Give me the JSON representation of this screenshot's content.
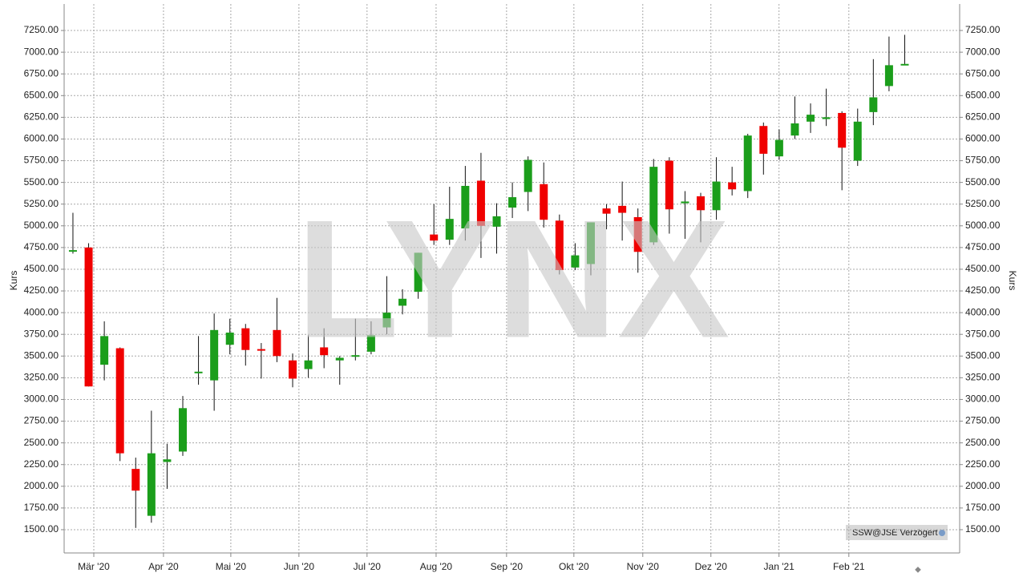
{
  "chart_data": {
    "type": "candlestick",
    "y_label": "Kurs",
    "watermark": "LYNX",
    "source_label": "SSW@JSE Verzögert",
    "up_color": "#1b9e1b",
    "down_color": "#f00000",
    "grid": true,
    "ylim": [
      1232,
      7555
    ],
    "yticks": [
      {
        "value": 1500,
        "label": "1500.00"
      },
      {
        "value": 1750,
        "label": "1750.00"
      },
      {
        "value": 2000,
        "label": "2000.00"
      },
      {
        "value": 2250,
        "label": "2250.00"
      },
      {
        "value": 2500,
        "label": "2500.00"
      },
      {
        "value": 2750,
        "label": "2750.00"
      },
      {
        "value": 3000,
        "label": "3000.00"
      },
      {
        "value": 3250,
        "label": "3250.00"
      },
      {
        "value": 3500,
        "label": "3500.00"
      },
      {
        "value": 3750,
        "label": "3750.00"
      },
      {
        "value": 4000,
        "label": "4000.00"
      },
      {
        "value": 4250,
        "label": "4250.00"
      },
      {
        "value": 4500,
        "label": "4500.00"
      },
      {
        "value": 4750,
        "label": "4750.00"
      },
      {
        "value": 5000,
        "label": "5000.00"
      },
      {
        "value": 5250,
        "label": "5250.00"
      },
      {
        "value": 5500,
        "label": "5500.00"
      },
      {
        "value": 5750,
        "label": "5750.00"
      },
      {
        "value": 6000,
        "label": "6000.00"
      },
      {
        "value": 6250,
        "label": "6250.00"
      },
      {
        "value": 6500,
        "label": "6500.00"
      },
      {
        "value": 6750,
        "label": "6750.00"
      },
      {
        "value": 7000,
        "label": "7000.00"
      },
      {
        "value": 7250,
        "label": "7250.00"
      }
    ],
    "xlim": [
      -0.56,
      56.5
    ],
    "xticks": [
      {
        "value": 1.33,
        "label": "Mär '20"
      },
      {
        "value": 5.77,
        "label": "Apr '20"
      },
      {
        "value": 10.06,
        "label": "Mai '20"
      },
      {
        "value": 14.4,
        "label": "Jun '20"
      },
      {
        "value": 18.74,
        "label": "Jul '20"
      },
      {
        "value": 23.14,
        "label": "Aug '20"
      },
      {
        "value": 27.63,
        "label": "Sep '20"
      },
      {
        "value": 31.92,
        "label": "Okt '20"
      },
      {
        "value": 36.31,
        "label": "Nov '20"
      },
      {
        "value": 40.65,
        "label": "Dez '20"
      },
      {
        "value": 44.99,
        "label": "Jan '21"
      },
      {
        "value": 49.44,
        "label": "Feb '21"
      }
    ],
    "open": [
      4710,
      4750,
      3400,
      3590,
      2200,
      1660,
      2280,
      2400,
      3310,
      3220,
      3630,
      3820,
      3580,
      3800,
      3450,
      3350,
      3600,
      3450,
      3500,
      3550,
      3830,
      4080,
      4240,
      4900,
      4840,
      4970,
      5520,
      4990,
      5210,
      5390,
      5480,
      5060,
      4520,
      4560,
      5200,
      5230,
      5100,
      4810,
      5750,
      5260,
      5340,
      5180,
      5500,
      5400,
      6150,
      5800,
      6040,
      6200,
      6230,
      6300,
      5750,
      6310,
      6610,
      6860
    ],
    "high": [
      5150,
      4800,
      3900,
      3600,
      2330,
      2870,
      2490,
      3040,
      3730,
      3990,
      3930,
      3870,
      3650,
      4170,
      3530,
      3740,
      3820,
      3500,
      3930,
      3900,
      4420,
      4270,
      4690,
      5250,
      5450,
      5690,
      5840,
      5260,
      5500,
      5800,
      5730,
      5130,
      4800,
      5040,
      5250,
      5510,
      5200,
      5770,
      5790,
      5400,
      5380,
      5790,
      5680,
      6060,
      6190,
      6110,
      6490,
      6410,
      6580,
      6320,
      6350,
      6920,
      7180,
      7200
    ],
    "low": [
      4680,
      3150,
      3220,
      2290,
      1520,
      1580,
      1970,
      2350,
      3170,
      2870,
      3520,
      3390,
      3240,
      3430,
      3140,
      3250,
      3360,
      3170,
      3450,
      3520,
      3750,
      3980,
      4160,
      4780,
      4780,
      4830,
      4630,
      4680,
      5090,
      5170,
      4980,
      4440,
      4490,
      4430,
      4960,
      4830,
      4460,
      4780,
      4910,
      4850,
      4810,
      5070,
      5350,
      5320,
      5590,
      5760,
      6000,
      6070,
      6150,
      5410,
      5690,
      6160,
      6550,
      6850
    ],
    "close": [
      4720,
      3150,
      3730,
      2380,
      1950,
      2380,
      2310,
      2900,
      3320,
      3800,
      3770,
      3570,
      3570,
      3500,
      3240,
      3450,
      3510,
      3480,
      3510,
      3740,
      4000,
      4160,
      4690,
      4830,
      5080,
      5460,
      5000,
      5110,
      5330,
      5760,
      5070,
      4490,
      4660,
      5040,
      5140,
      5150,
      4700,
      5680,
      5190,
      5280,
      5180,
      5510,
      5420,
      6040,
      5830,
      5990,
      6180,
      6280,
      6250,
      5900,
      6200,
      6480,
      6850,
      6865
    ]
  }
}
